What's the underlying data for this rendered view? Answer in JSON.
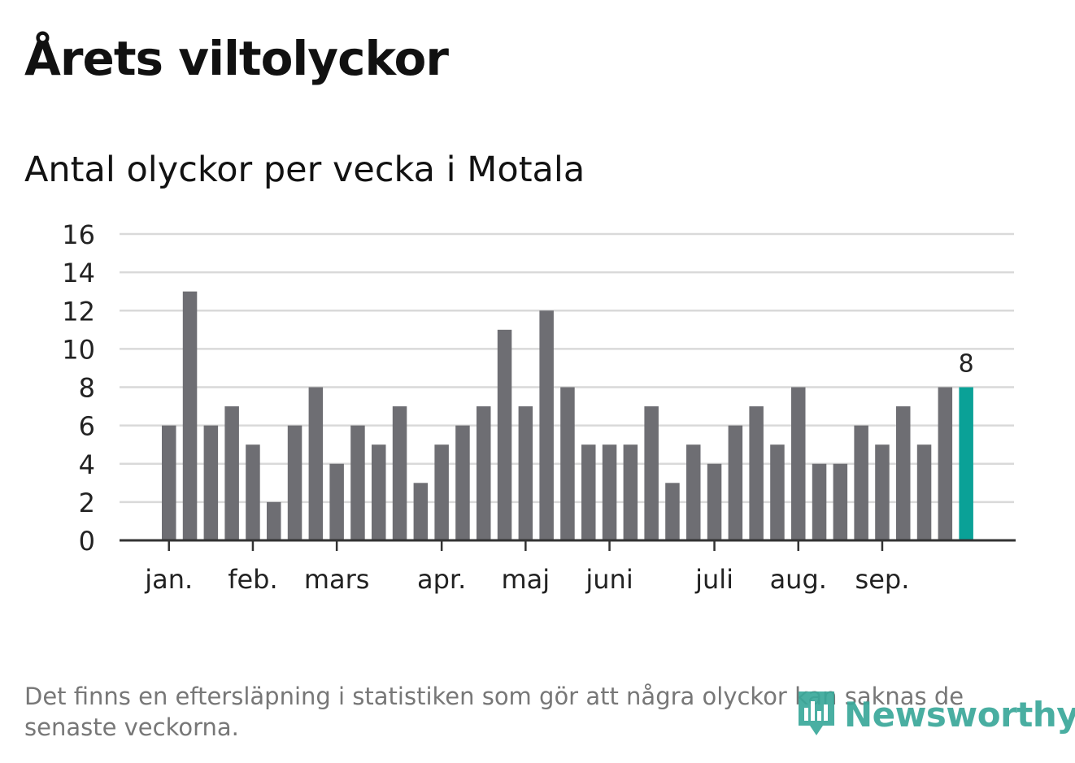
{
  "title": "Årets viltolyckor",
  "subtitle": "Antal olyckor per vecka i Motala",
  "note": "Det finns en eftersläpning i statistiken som gör att några olyckor kan saknas de senaste veckorna.",
  "logo": {
    "text": "Newsworthy",
    "icon": "bar-chart-bubble-icon"
  },
  "colors": {
    "bar": "#6e6e73",
    "highlight": "#0aa197",
    "grid": "#d9d9d9",
    "axis": "#333333",
    "logo": "#3aa89a"
  },
  "chart_data": {
    "type": "bar",
    "title": "Antal olyckor per vecka i Motala",
    "xlabel": "",
    "ylabel": "",
    "ylim": [
      0,
      16
    ],
    "yticks": [
      "0",
      "2",
      "4",
      "6",
      "8",
      "10",
      "12",
      "14",
      "16"
    ],
    "grid": true,
    "values": [
      6,
      13,
      6,
      7,
      5,
      2,
      6,
      8,
      4,
      6,
      5,
      7,
      3,
      5,
      6,
      7,
      11,
      7,
      12,
      8,
      5,
      5,
      5,
      7,
      3,
      5,
      4,
      6,
      7,
      5,
      8,
      4,
      4,
      6,
      5,
      7,
      5,
      8,
      8
    ],
    "highlight_index": 38,
    "highlight_label": "8",
    "month_labels": [
      {
        "label": "jan.",
        "bar_index": 0
      },
      {
        "label": "feb.",
        "bar_index": 4
      },
      {
        "label": "mars",
        "bar_index": 8
      },
      {
        "label": "apr.",
        "bar_index": 13
      },
      {
        "label": "maj",
        "bar_index": 17
      },
      {
        "label": "juni",
        "bar_index": 21
      },
      {
        "label": "juli",
        "bar_index": 26
      },
      {
        "label": "aug.",
        "bar_index": 30
      },
      {
        "label": "sep.",
        "bar_index": 34
      }
    ]
  }
}
